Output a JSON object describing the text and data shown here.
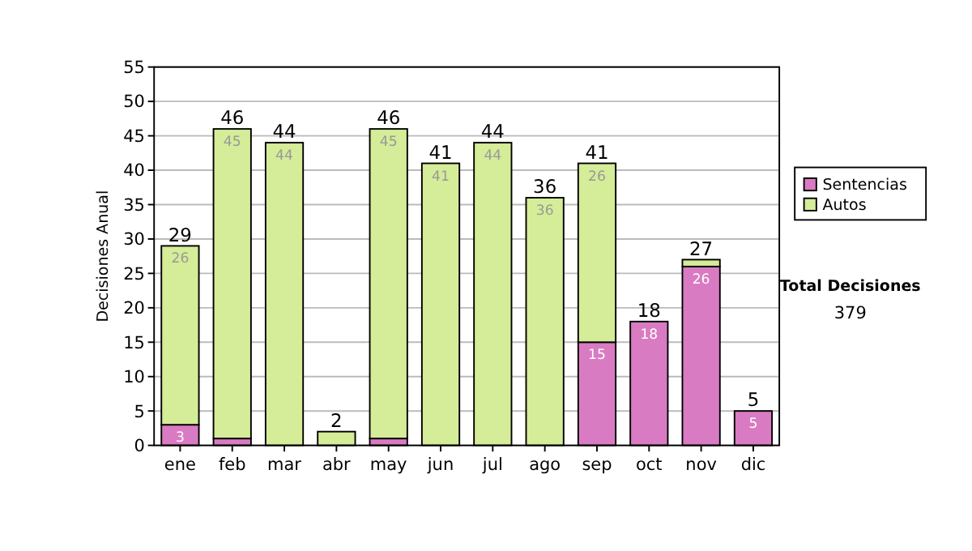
{
  "chart_data": {
    "type": "bar",
    "stacked": true,
    "ylabel": "Decisiones Anual",
    "categories": [
      "ene",
      "feb",
      "mar",
      "abr",
      "may",
      "jun",
      "jul",
      "ago",
      "sep",
      "oct",
      "nov",
      "dic"
    ],
    "series": [
      {
        "name": "Sentencias",
        "color": "#d97bc2",
        "values": [
          3,
          1,
          0,
          0,
          1,
          0,
          0,
          0,
          15,
          18,
          26,
          5
        ],
        "value_labels": [
          "3",
          null,
          null,
          null,
          null,
          null,
          null,
          null,
          "15",
          "18",
          "26",
          "5"
        ]
      },
      {
        "name": "Autos",
        "color": "#d5ec98",
        "values": [
          26,
          45,
          44,
          2,
          45,
          41,
          44,
          36,
          26,
          0,
          1,
          0
        ],
        "value_labels": [
          "26",
          "45",
          "44",
          null,
          "45",
          "41",
          "44",
          "36",
          "26",
          null,
          null,
          null
        ]
      }
    ],
    "totals": [
      "29",
      "46",
      "44",
      "2",
      "46",
      "41",
      "44",
      "36",
      "41",
      "18",
      "27",
      "5"
    ],
    "ylim": [
      0,
      55
    ],
    "yticks": [
      0,
      5,
      10,
      15,
      20,
      25,
      30,
      35,
      40,
      45,
      50,
      55
    ],
    "grid": "y",
    "legend": "right",
    "annotations": [
      "Total Decisiones",
      "379"
    ]
  }
}
